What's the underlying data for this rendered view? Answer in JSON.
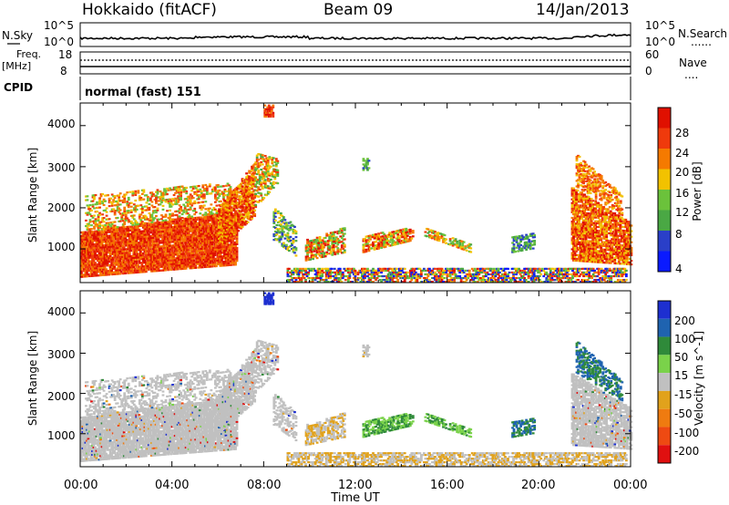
{
  "header": {
    "station": "Hokkaido (fitACF)",
    "beam": "Beam 09",
    "date": "14/Jan/2013"
  },
  "side_labels": {
    "nsky": "N.Sky",
    "freq": "Freq.",
    "freq_unit": "[MHz]",
    "cpid": "CPID",
    "nsearch": "N.Search",
    "nave": "Nave",
    "dots": "......",
    "dots_short": "...."
  },
  "cpid_text": "normal (fast) 151",
  "colors": {
    "power_scale": [
      "#0a1aff",
      "#2a3fc8",
      "#4aa844",
      "#6bc23b",
      "#f2c200",
      "#f57a00",
      "#ef3a0c",
      "#e01000"
    ],
    "velocity_scale": [
      "#1d2fd0",
      "#1f63b0",
      "#2f8a3a",
      "#7ad24a",
      "#c0c0c0",
      "#e1a21c",
      "#ef7b10",
      "#ee4a12",
      "#e01010"
    ],
    "ground": "#c0c0c0"
  },
  "chart_data": [
    {
      "type": "line",
      "title": "N.Sky / N.Search",
      "yticks_left": [
        "10^5",
        "10^0"
      ],
      "yticks_right": [
        "10^5",
        "10^0"
      ]
    },
    {
      "type": "line",
      "title": "Freq. / Nave",
      "yticks_left": [
        "18",
        "8"
      ],
      "yticks_right": [
        "60",
        "0"
      ]
    },
    {
      "type": "heatmap",
      "ylabel": "Slant Range [km]",
      "yticks": [
        "1000",
        "2000",
        "3000",
        "4000"
      ],
      "colorbar_label": "Power [dB]",
      "colorbar_ticks": [
        "4",
        "8",
        "12",
        "16",
        "20",
        "24",
        "28"
      ]
    },
    {
      "type": "heatmap",
      "ylabel": "Slant Range [km]",
      "yticks": [
        "1000",
        "2000",
        "3000",
        "4000"
      ],
      "colorbar_label": "Velocity [m s^-1]",
      "colorbar_ticks": [
        "200",
        "100",
        "50",
        "15",
        "-15",
        "-50",
        "-100",
        "-200"
      ],
      "xlabel": "Time UT",
      "xticks": [
        "00:00",
        "04:00",
        "08:00",
        "12:00",
        "16:00",
        "20:00",
        "00:00"
      ]
    }
  ]
}
